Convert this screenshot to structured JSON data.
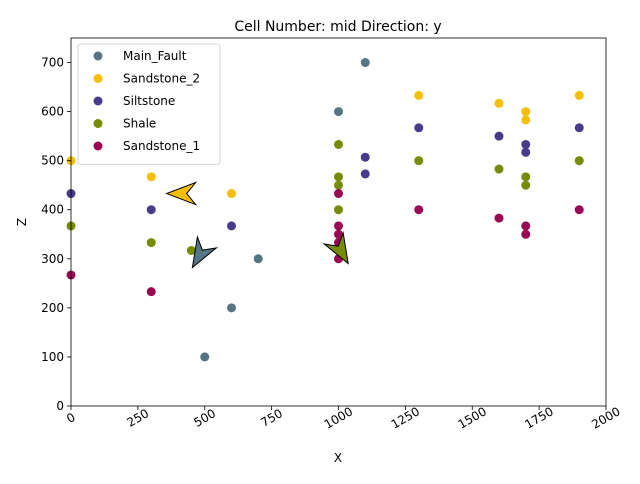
{
  "chart_data": {
    "type": "scatter",
    "title": "Cell Number: mid Direction: y",
    "xlabel": "X",
    "ylabel": "Z",
    "xlim": [
      0,
      2000
    ],
    "ylim": [
      0,
      750
    ],
    "xticks": [
      0,
      250,
      500,
      750,
      1000,
      1250,
      1500,
      1750,
      2000
    ],
    "yticks": [
      0,
      100,
      200,
      300,
      400,
      500,
      600,
      700
    ],
    "xtick_rotation": -30,
    "grid": false,
    "legend_position": "upper-left",
    "series": [
      {
        "name": "Main_Fault",
        "color": "#537584",
        "points": [
          [
            500,
            100
          ],
          [
            600,
            200
          ],
          [
            700,
            300
          ],
          [
            1000,
            600
          ],
          [
            1100,
            700
          ]
        ]
      },
      {
        "name": "Sandstone_2",
        "color": "#f5be09",
        "points": [
          [
            0,
            500
          ],
          [
            300,
            467
          ],
          [
            600,
            433
          ],
          [
            1300,
            633
          ],
          [
            1600,
            617
          ],
          [
            1700,
            600
          ],
          [
            1700,
            583
          ],
          [
            1900,
            633
          ]
        ]
      },
      {
        "name": "Siltstone",
        "color": "#4a3a8c",
        "points": [
          [
            0,
            433
          ],
          [
            300,
            400
          ],
          [
            600,
            367
          ],
          [
            1100,
            507
          ],
          [
            1100,
            473
          ],
          [
            1300,
            567
          ],
          [
            1600,
            550
          ],
          [
            1700,
            533
          ],
          [
            1700,
            517
          ],
          [
            1900,
            567
          ]
        ]
      },
      {
        "name": "Shale",
        "color": "#768b06",
        "points": [
          [
            0,
            367
          ],
          [
            300,
            333
          ],
          [
            450,
            317
          ],
          [
            1000,
            533
          ],
          [
            1000,
            467
          ],
          [
            1000,
            450
          ],
          [
            1000,
            400
          ],
          [
            1300,
            500
          ],
          [
            1600,
            483
          ],
          [
            1700,
            467
          ],
          [
            1700,
            450
          ],
          [
            1900,
            500
          ]
        ]
      },
      {
        "name": "Sandstone_1",
        "color": "#990853",
        "points": [
          [
            0,
            267
          ],
          [
            300,
            233
          ],
          [
            1000,
            433
          ],
          [
            1000,
            367
          ],
          [
            1000,
            350
          ],
          [
            1000,
            333
          ],
          [
            1000,
            300
          ],
          [
            1300,
            400
          ],
          [
            1600,
            383
          ],
          [
            1700,
            367
          ],
          [
            1700,
            350
          ],
          [
            1900,
            400
          ]
        ]
      }
    ],
    "orientation_markers": [
      {
        "series": "Sandstone_2",
        "x": 410,
        "y": 433,
        "direction": "left"
      },
      {
        "series": "Main_Fault",
        "x": 480,
        "y": 307,
        "direction": "down-left"
      },
      {
        "series": "Shale",
        "x": 1010,
        "y": 315,
        "direction": "down-right"
      }
    ]
  }
}
